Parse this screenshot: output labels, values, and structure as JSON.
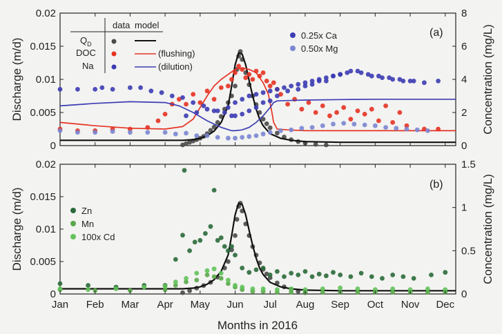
{
  "figure": {
    "xlabel": "Months in 2016"
  },
  "chart_data": [
    {
      "panel": "(a)",
      "type": "scatter",
      "ylabel": "Discharge (m/d)",
      "y2label": "Concentration (mg/L)",
      "xlim": [
        0,
        11.3
      ],
      "ylim": [
        0,
        0.02
      ],
      "y2lim": [
        0,
        8
      ],
      "x_ticks": [
        "Jan",
        "Feb",
        "Mar",
        "Apr",
        "May",
        "Jun",
        "Jul",
        "Aug",
        "Sep",
        "Oct",
        "Nov",
        "Dec"
      ],
      "y_ticks": [
        "0",
        "0.005",
        "0.01",
        "0.015",
        "0.02"
      ],
      "y2_ticks": [
        "0",
        "2",
        "4",
        "6",
        "8"
      ],
      "legend_table": {
        "col_data": "data",
        "col_model": "model",
        "rows": [
          {
            "label": "Q",
            "sub": "D",
            "note": ""
          },
          {
            "label": "DOC",
            "sub": "",
            "note": "(flushing)"
          },
          {
            "label": "Na",
            "sub": "",
            "note": "(dilution)"
          }
        ]
      },
      "legend_extra": [
        {
          "name": "0.25x Ca",
          "color": "#3c3cb4"
        },
        {
          "name": "0.50x Mg",
          "color": "#7a86d2"
        }
      ],
      "series": [
        {
          "name": "QD data",
          "axis": "left",
          "color": "#4a4a4a",
          "kind": "points",
          "x": [
            3.5,
            3.6,
            3.7,
            3.8,
            3.9,
            4.0,
            4.1,
            4.2,
            4.3,
            4.4,
            4.5,
            4.6,
            4.7,
            4.8,
            4.9,
            5.0,
            5.05,
            5.1,
            5.15,
            5.2,
            5.3,
            5.4,
            5.5,
            5.6,
            5.7,
            5.8,
            5.9,
            6.0,
            6.2,
            6.4,
            6.6,
            6.8,
            7.0,
            7.3,
            7.6
          ],
          "y": [
            0.0001,
            0.0003,
            0.0005,
            0.0007,
            0.0009,
            0.0011,
            0.0014,
            0.0018,
            0.0023,
            0.0028,
            0.0035,
            0.0044,
            0.0055,
            0.0065,
            0.0075,
            0.009,
            0.0115,
            0.0135,
            0.0142,
            0.013,
            0.011,
            0.0092,
            0.0075,
            0.0062,
            0.005,
            0.004,
            0.0033,
            0.0027,
            0.0019,
            0.0013,
            0.0009,
            0.0006,
            0.0004,
            0.0002,
            0.0001
          ]
        },
        {
          "name": "QD model",
          "axis": "left",
          "color": "#111111",
          "kind": "line",
          "x": [
            0,
            1,
            2,
            3,
            3.5,
            3.8,
            4.0,
            4.2,
            4.4,
            4.6,
            4.8,
            4.9,
            5.0,
            5.1,
            5.2,
            5.3,
            5.4,
            5.5,
            5.6,
            5.7,
            5.8,
            6.0,
            6.3,
            6.6,
            7.0,
            8,
            9,
            10,
            11.3
          ],
          "y": [
            0.0008,
            0.0008,
            0.0008,
            0.0008,
            0.0008,
            0.0009,
            0.0011,
            0.0015,
            0.0022,
            0.0035,
            0.006,
            0.009,
            0.0122,
            0.014,
            0.0138,
            0.0122,
            0.0098,
            0.0075,
            0.0055,
            0.004,
            0.003,
            0.0018,
            0.0011,
            0.0008,
            0.0006,
            0.0005,
            0.0005,
            0.0005,
            0.0005
          ]
        },
        {
          "name": "DOC data",
          "axis": "right",
          "color": "#e63222",
          "kind": "points",
          "x": [
            0,
            0.5,
            1.0,
            1.5,
            2.0,
            2.5,
            2.8,
            3.0,
            3.2,
            3.4,
            3.6,
            3.8,
            4.0,
            4.2,
            4.4,
            4.6,
            4.8,
            4.9,
            5.0,
            5.1,
            5.2,
            5.3,
            5.4,
            5.5,
            5.6,
            5.7,
            5.8,
            5.9,
            6.0,
            6.1,
            6.2,
            6.3,
            6.5,
            6.7,
            6.9,
            7.1,
            7.3,
            7.5,
            7.7,
            7.9,
            8.1,
            8.3,
            8.5,
            8.7,
            8.9,
            9.1,
            9.3,
            9.5,
            9.7,
            9.9,
            10.4,
            10.8
          ],
          "y": [
            1.0,
            0.9,
            0.9,
            1.0,
            1.0,
            1.1,
            1.5,
            1.9,
            2.5,
            2.8,
            2.5,
            3.1,
            2.6,
            3.3,
            2.8,
            3.5,
            3.6,
            4.0,
            4.4,
            4.8,
            4.6,
            4.1,
            4.3,
            4.0,
            4.5,
            4.2,
            4.4,
            3.9,
            3.6,
            3.8,
            3.4,
            3.1,
            2.5,
            2.8,
            2.2,
            2.6,
            2.0,
            2.4,
            1.8,
            2.0,
            2.3,
            1.6,
            2.1,
            1.9,
            2.2,
            1.5,
            2.4,
            1.4,
            2.0,
            1.2,
            1.0,
            1.0
          ]
        },
        {
          "name": "DOC model",
          "axis": "right",
          "color": "#e63222",
          "kind": "line",
          "x": [
            0,
            1,
            2,
            3,
            3.5,
            3.8,
            4.0,
            4.2,
            4.4,
            4.6,
            4.8,
            5.0,
            5.2,
            5.4,
            5.6,
            5.8,
            5.95,
            6.05,
            6.1,
            6.2,
            6.5,
            7.0,
            8,
            9,
            10,
            11.3
          ],
          "y": [
            1.4,
            1.2,
            1.05,
            1.0,
            1.15,
            1.6,
            2.3,
            3.0,
            3.6,
            4.0,
            4.3,
            4.6,
            4.7,
            4.6,
            4.4,
            3.8,
            3.1,
            2.0,
            1.4,
            1.0,
            0.95,
            0.9,
            0.9,
            0.9,
            0.9,
            0.9
          ]
        },
        {
          "name": "Na data",
          "axis": "right",
          "color": "#3c3cb4",
          "kind": "points",
          "x": [
            0,
            0.5,
            1.0,
            1.2,
            1.5,
            2.0,
            2.3,
            2.6,
            2.9,
            3.2,
            3.5,
            3.8,
            4.1,
            4.4,
            4.7,
            4.9,
            5.0,
            5.2,
            5.4,
            5.6,
            5.8,
            6.0,
            6.2,
            6.5,
            6.8,
            7.0,
            7.2,
            7.4,
            7.6,
            7.8,
            8.0,
            8.3,
            8.6,
            8.9,
            9.2,
            9.5,
            9.8,
            10.1,
            10.4,
            10.8
          ],
          "y": [
            3.4,
            3.4,
            3.4,
            3.5,
            3.4,
            3.5,
            3.5,
            3.3,
            3.2,
            3.0,
            2.9,
            2.6,
            2.4,
            2.1,
            2.0,
            1.8,
            1.8,
            1.9,
            2.1,
            2.3,
            2.6,
            2.7,
            3.0,
            3.3,
            3.4,
            3.6,
            3.7,
            3.9,
            3.9,
            4.2,
            4.3,
            4.5,
            4.4,
            4.2,
            4.1,
            4.0,
            3.9,
            3.9,
            3.8,
            3.9
          ]
        },
        {
          "name": "Na model",
          "axis": "right",
          "color": "#3c3cb4",
          "kind": "line",
          "x": [
            0,
            1,
            2,
            3,
            3.4,
            3.8,
            4.2,
            4.6,
            4.9,
            5.0,
            5.2,
            5.4,
            5.6,
            5.8,
            6.0,
            6.1,
            6.2,
            6.5,
            7.0,
            8,
            9,
            10,
            11.3
          ],
          "y": [
            2.4,
            2.55,
            2.65,
            2.6,
            2.4,
            2.0,
            1.5,
            1.1,
            0.9,
            0.9,
            0.95,
            1.1,
            1.4,
            1.8,
            2.3,
            2.6,
            2.7,
            2.72,
            2.75,
            2.78,
            2.8,
            2.8,
            2.8
          ]
        },
        {
          "name": "0.25x Ca",
          "axis": "right",
          "color": "#3c3cb4",
          "kind": "points",
          "x": [
            3.6,
            3.9,
            4.2,
            4.5,
            4.8,
            5.0,
            5.2,
            5.4,
            5.6,
            5.8,
            6.0,
            6.2,
            6.4,
            6.6,
            6.8,
            7.0,
            7.2,
            7.4,
            7.6,
            7.8,
            8.0,
            8.2,
            8.5,
            8.8,
            9.1,
            9.4,
            9.7,
            10.0
          ],
          "y": [
            1.8,
            2.0,
            2.2,
            2.1,
            2.3,
            2.6,
            2.8,
            3.0,
            3.1,
            3.2,
            3.3,
            3.4,
            3.5,
            3.6,
            3.7,
            3.8,
            3.9,
            4.0,
            4.1,
            4.2,
            4.3,
            4.4,
            4.5,
            4.3,
            4.2,
            4.1,
            4.0,
            3.9
          ]
        },
        {
          "name": "0.50x Mg",
          "axis": "right",
          "color": "#7a86d2",
          "kind": "points",
          "x": [
            0,
            0.5,
            1.0,
            1.5,
            2.0,
            2.5,
            3.0,
            3.3,
            3.6,
            3.9,
            4.2,
            4.5,
            4.8,
            5.0,
            5.2,
            5.4,
            5.6,
            5.8,
            6.0,
            6.3,
            6.6,
            6.9,
            7.2,
            7.5,
            7.8,
            8.1,
            8.4,
            8.7,
            9.0,
            9.3,
            9.6,
            9.9,
            10.2,
            10.5
          ],
          "y": [
            0.9,
            0.8,
            0.8,
            0.85,
            0.8,
            0.8,
            0.8,
            0.7,
            0.75,
            0.6,
            0.6,
            0.5,
            0.45,
            0.45,
            0.5,
            0.55,
            0.6,
            0.7,
            0.8,
            0.9,
            0.95,
            1.05,
            1.1,
            1.2,
            1.3,
            1.35,
            1.3,
            1.25,
            1.2,
            1.1,
            1.05,
            1.0,
            0.95,
            0.9
          ]
        }
      ]
    },
    {
      "panel": "(b)",
      "type": "scatter",
      "ylabel": "Discharge (m/d)",
      "y2label": "Concentration (mg/L)",
      "xlim": [
        0,
        11.3
      ],
      "ylim": [
        0,
        0.02
      ],
      "y2lim": [
        0,
        1.5
      ],
      "x_ticks": [
        "Jan",
        "Feb",
        "Mar",
        "Apr",
        "May",
        "Jun",
        "Jul",
        "Aug",
        "Sep",
        "Oct",
        "Nov",
        "Dec"
      ],
      "y_ticks": [
        "0",
        "0.005",
        "0.01",
        "0.015",
        "0.02"
      ],
      "y2_ticks": [
        "0",
        "0.5",
        "1",
        "1.5"
      ],
      "legend": [
        {
          "name": "Zn",
          "color": "#2a6a3a"
        },
        {
          "name": "Mn",
          "color": "#5aa84a"
        },
        {
          "name": "100x Cd",
          "color": "#62c25a"
        }
      ],
      "series": [
        {
          "name": "QD data",
          "axis": "left",
          "color": "#4a4a4a",
          "kind": "points",
          "x": [
            3.5,
            3.7,
            3.9,
            4.1,
            4.3,
            4.5,
            4.7,
            4.8,
            4.9,
            5.0,
            5.05,
            5.1,
            5.15,
            5.2,
            5.3,
            5.4,
            5.5,
            5.6,
            5.7,
            5.8,
            5.9,
            6.0,
            6.2,
            6.4,
            6.6,
            6.8,
            7.0
          ],
          "y": [
            0.0002,
            0.0005,
            0.0009,
            0.0013,
            0.0018,
            0.0026,
            0.004,
            0.005,
            0.0068,
            0.009,
            0.0115,
            0.0135,
            0.014,
            0.0128,
            0.0108,
            0.009,
            0.0073,
            0.006,
            0.0048,
            0.0038,
            0.0031,
            0.0025,
            0.0017,
            0.0011,
            0.0007,
            0.0004,
            0.0002
          ]
        },
        {
          "name": "QD model",
          "axis": "left",
          "color": "#111111",
          "kind": "line",
          "x": [
            0,
            1,
            2,
            3,
            3.5,
            3.8,
            4.0,
            4.2,
            4.4,
            4.6,
            4.8,
            4.9,
            5.0,
            5.1,
            5.2,
            5.3,
            5.4,
            5.5,
            5.6,
            5.7,
            5.8,
            6.0,
            6.3,
            6.6,
            7.0,
            8,
            9,
            10,
            11.3
          ],
          "y": [
            0.0008,
            0.0008,
            0.0008,
            0.0008,
            0.0008,
            0.0009,
            0.0011,
            0.0015,
            0.0022,
            0.0035,
            0.006,
            0.009,
            0.0122,
            0.014,
            0.0138,
            0.0122,
            0.0098,
            0.0075,
            0.0055,
            0.004,
            0.003,
            0.0018,
            0.0011,
            0.0008,
            0.0006,
            0.0005,
            0.0005,
            0.0005,
            0.0005
          ]
        },
        {
          "name": "Zn",
          "axis": "right",
          "color": "#2a6a3a",
          "kind": "points",
          "x": [
            0,
            0.8,
            1.6,
            2.4,
            3.0,
            3.3,
            3.5,
            3.55,
            3.7,
            3.85,
            4.0,
            4.15,
            4.3,
            4.4,
            4.5,
            4.6,
            4.7,
            4.8,
            4.9,
            5.0,
            5.2,
            5.4,
            5.6,
            5.8,
            6.0,
            6.2,
            6.4,
            6.6,
            6.8,
            7.0,
            7.2,
            7.4,
            7.6,
            7.8,
            8.0,
            8.3,
            8.6,
            8.9,
            9.2,
            9.5,
            9.8,
            10.1,
            10.6,
            11.0
          ],
          "y": [
            0.12,
            0.1,
            0.08,
            0.1,
            0.1,
            0.4,
            0.68,
            1.43,
            0.5,
            0.6,
            0.62,
            0.7,
            0.78,
            1.2,
            0.62,
            0.65,
            0.55,
            0.5,
            0.55,
            0.45,
            0.3,
            0.25,
            0.28,
            0.3,
            0.22,
            0.26,
            0.2,
            0.24,
            0.22,
            0.26,
            0.2,
            0.23,
            0.21,
            0.25,
            0.22,
            0.2,
            0.24,
            0.2,
            0.18,
            0.22,
            0.2,
            0.18,
            0.22,
            0.25
          ]
        },
        {
          "name": "Mn",
          "axis": "right",
          "color": "#5aa84a",
          "kind": "points",
          "x": [
            0,
            1,
            2,
            3,
            3.3,
            3.6,
            3.9,
            4.2,
            4.4,
            4.6,
            4.8,
            5.0,
            5.2,
            5.5,
            5.8,
            6.2,
            6.6,
            7.0,
            7.5,
            8,
            8.5,
            9,
            9.5,
            10,
            10.5,
            11
          ],
          "y": [
            0.05,
            0.04,
            0.04,
            0.05,
            0.1,
            0.14,
            0.16,
            0.22,
            0.2,
            0.18,
            0.12,
            0.08,
            0.05,
            0.03,
            0.03,
            0.02,
            0.02,
            0.02,
            0.02,
            0.02,
            0.02,
            0.02,
            0.02,
            0.02,
            0.02,
            0.02
          ]
        },
        {
          "name": "100x Cd",
          "axis": "right",
          "color": "#62c25a",
          "kind": "points",
          "x": [
            0,
            0.8,
            1.6,
            2.4,
            3.0,
            3.3,
            3.6,
            3.9,
            4.2,
            4.4,
            4.6,
            4.8,
            5.0,
            5.2,
            5.5,
            5.8,
            6.2,
            6.6,
            7.0,
            7.5,
            8,
            8.5,
            9,
            9.5,
            10,
            10.5,
            11
          ],
          "y": [
            0.06,
            0.05,
            0.06,
            0.08,
            0.09,
            0.14,
            0.18,
            0.24,
            0.27,
            0.29,
            0.24,
            0.16,
            0.1,
            0.08,
            0.06,
            0.06,
            0.05,
            0.06,
            0.05,
            0.06,
            0.07,
            0.06,
            0.05,
            0.06,
            0.05,
            0.06,
            0.05
          ]
        }
      ]
    }
  ]
}
